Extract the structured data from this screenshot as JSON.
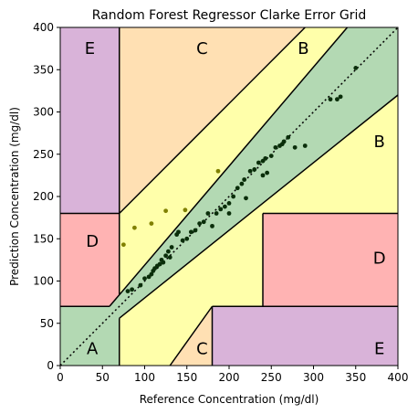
{
  "chart_data": {
    "type": "scatter",
    "title": "Random Forest Regressor Clarke Error Grid",
    "xlabel": "Reference Concentration (mg/dl)",
    "ylabel": "Prediction Concentration (mg/dl)",
    "xlim": [
      0,
      400
    ],
    "ylim": [
      0,
      400
    ],
    "x_ticks": [
      "0",
      "50",
      "100",
      "150",
      "200",
      "250",
      "300",
      "350",
      "400"
    ],
    "y_ticks": [
      "0",
      "50",
      "100",
      "150",
      "200",
      "250",
      "300",
      "350",
      "400"
    ],
    "grid": false,
    "identity_line": "dotted",
    "zone_colors": {
      "A": "#b3d9b3",
      "B": "#ffffaa",
      "C": "#ffe0b3",
      "D": "#ffb3b3",
      "E": "#d9b3d9"
    },
    "point_color_in_A": "#0a2e0a",
    "point_color_outside_A": "#808000",
    "zone_labels": [
      {
        "text": "E",
        "x": 35,
        "y": 375
      },
      {
        "text": "C",
        "x": 168,
        "y": 375
      },
      {
        "text": "B",
        "x": 288,
        "y": 375
      },
      {
        "text": "B",
        "x": 378,
        "y": 265
      },
      {
        "text": "D",
        "x": 38,
        "y": 147
      },
      {
        "text": "D",
        "x": 378,
        "y": 127
      },
      {
        "text": "A",
        "x": 38,
        "y": 20
      },
      {
        "text": "C",
        "x": 168,
        "y": 20
      },
      {
        "text": "E",
        "x": 378,
        "y": 20
      }
    ],
    "points_in_A": [
      [
        80,
        88
      ],
      [
        85,
        90
      ],
      [
        95,
        95
      ],
      [
        100,
        103
      ],
      [
        105,
        105
      ],
      [
        108,
        108
      ],
      [
        110,
        112
      ],
      [
        112,
        115
      ],
      [
        115,
        118
      ],
      [
        118,
        120
      ],
      [
        120,
        125
      ],
      [
        122,
        122
      ],
      [
        125,
        130
      ],
      [
        128,
        135
      ],
      [
        130,
        128
      ],
      [
        132,
        140
      ],
      [
        138,
        155
      ],
      [
        140,
        158
      ],
      [
        145,
        148
      ],
      [
        150,
        150
      ],
      [
        155,
        158
      ],
      [
        160,
        160
      ],
      [
        165,
        168
      ],
      [
        170,
        170
      ],
      [
        180,
        165
      ],
      [
        185,
        180
      ],
      [
        190,
        185
      ],
      [
        195,
        188
      ],
      [
        200,
        192
      ],
      [
        205,
        200
      ],
      [
        210,
        210
      ],
      [
        215,
        215
      ],
      [
        218,
        220
      ],
      [
        220,
        198
      ],
      [
        225,
        230
      ],
      [
        230,
        232
      ],
      [
        235,
        240
      ],
      [
        240,
        242
      ],
      [
        243,
        245
      ],
      [
        250,
        248
      ],
      [
        255,
        258
      ],
      [
        260,
        260
      ],
      [
        263,
        262
      ],
      [
        265,
        265
      ],
      [
        270,
        270
      ],
      [
        278,
        258
      ],
      [
        290,
        260
      ],
      [
        320,
        315
      ],
      [
        328,
        315
      ],
      [
        332,
        318
      ],
      [
        350,
        352
      ],
      [
        240,
        225
      ],
      [
        245,
        228
      ],
      [
        200,
        180
      ],
      [
        175,
        180
      ]
    ],
    "points_outside_A": [
      [
        75,
        143
      ],
      [
        88,
        163
      ],
      [
        108,
        168
      ],
      [
        125,
        183
      ],
      [
        148,
        184
      ],
      [
        187,
        230
      ]
    ]
  }
}
